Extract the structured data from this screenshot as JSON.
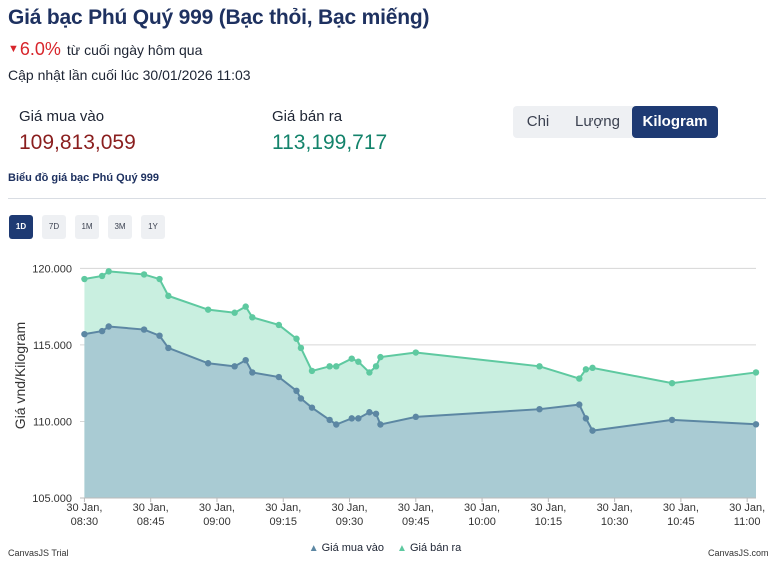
{
  "header": {
    "title": "Giá bạc Phú Quý 999 (Bạc thỏi, Bạc miếng)",
    "change_icon": "▼",
    "change_pct": "6.0%",
    "change_note": "từ cuối ngày hôm qua",
    "updated": "Cập nhật lần cuối lúc 30/01/2026 11:03"
  },
  "prices": {
    "buy_label": "Giá mua vào",
    "buy_value": "109,813,059",
    "sell_label": "Giá bán ra",
    "sell_value": "113,199,717"
  },
  "unit_tabs": [
    {
      "label": "Chi",
      "active": false
    },
    {
      "label": "Lượng",
      "active": false
    },
    {
      "label": "Kilogram",
      "active": true
    }
  ],
  "chart_caption": "Biểu đồ giá bạc Phú Quý 999",
  "range_tabs": [
    {
      "label": "1D",
      "active": true
    },
    {
      "label": "7D",
      "active": false
    },
    {
      "label": "1M",
      "active": false
    },
    {
      "label": "3M",
      "active": false
    },
    {
      "label": "1Y",
      "active": false
    }
  ],
  "colors": {
    "buy": "#5c87a3",
    "buy_fill": "#a9cbd3",
    "sell": "#5ec9a0",
    "sell_fill": "#c9efe0",
    "accent": "#1e3a73"
  },
  "chart_data": {
    "type": "area",
    "title": "Biểu đồ giá bạc Phú Quý 999",
    "ylabel": "Giá vnd/Kilogram",
    "xlabel": "",
    "ylim": [
      105000,
      121000
    ],
    "y_ticks": [
      105000,
      110000,
      115000,
      120000
    ],
    "y_tick_labels": [
      "105.000",
      "110.000",
      "115.000",
      "120.000"
    ],
    "x_range_minutes": [
      -1,
      152
    ],
    "x_ticks": [
      {
        "t": 0,
        "label": [
          "30 Jan,",
          "08:30"
        ]
      },
      {
        "t": 15,
        "label": [
          "30 Jan,",
          "08:45"
        ]
      },
      {
        "t": 30,
        "label": [
          "30 Jan,",
          "09:00"
        ]
      },
      {
        "t": 45,
        "label": [
          "30 Jan,",
          "09:15"
        ]
      },
      {
        "t": 60,
        "label": [
          "30 Jan,",
          "09:30"
        ]
      },
      {
        "t": 75,
        "label": [
          "30 Jan,",
          "09:45"
        ]
      },
      {
        "t": 90,
        "label": [
          "30 Jan,",
          "10:00"
        ]
      },
      {
        "t": 105,
        "label": [
          "30 Jan,",
          "10:15"
        ]
      },
      {
        "t": 120,
        "label": [
          "30 Jan,",
          "10:30"
        ]
      },
      {
        "t": 135,
        "label": [
          "30 Jan,",
          "10:45"
        ]
      },
      {
        "t": 150,
        "label": [
          "30 Jan,",
          "11:00"
        ]
      }
    ],
    "series": [
      {
        "name": "Giá mua vào",
        "t": [
          0,
          4,
          5.5,
          13.5,
          17,
          19,
          28,
          34,
          36.5,
          38,
          44,
          48,
          49,
          51.5,
          55.5,
          57,
          60.5,
          62,
          64.5,
          66,
          67,
          75,
          103,
          112,
          113.5,
          115,
          133,
          152
        ],
        "values": [
          115700,
          115900,
          116200,
          116000,
          115600,
          114800,
          113800,
          113600,
          114000,
          113200,
          112900,
          112000,
          111500,
          110900,
          110100,
          109800,
          110200,
          110200,
          110600,
          110500,
          109800,
          110300,
          110800,
          111100,
          110200,
          109400,
          110100,
          109813
        ]
      },
      {
        "name": "Giá bán ra",
        "t": [
          0,
          4,
          5.5,
          13.5,
          17,
          19,
          28,
          34,
          36.5,
          38,
          44,
          48,
          49,
          51.5,
          55.5,
          57,
          60.5,
          62,
          64.5,
          66,
          67,
          75,
          103,
          112,
          113.5,
          115,
          133,
          152
        ],
        "values": [
          119300,
          119500,
          119800,
          119600,
          119300,
          118200,
          117300,
          117100,
          117500,
          116800,
          116300,
          115400,
          114800,
          113300,
          113600,
          113600,
          114100,
          113900,
          113200,
          113600,
          114200,
          114500,
          113600,
          112800,
          113400,
          113500,
          112500,
          113200
        ]
      }
    ],
    "legend": [
      "Giá mua vào",
      "Giá bán ra"
    ],
    "legend_position": "bottom-center"
  },
  "watermarks": {
    "left": "CanvasJS Trial",
    "right": "CanvasJS.com"
  }
}
